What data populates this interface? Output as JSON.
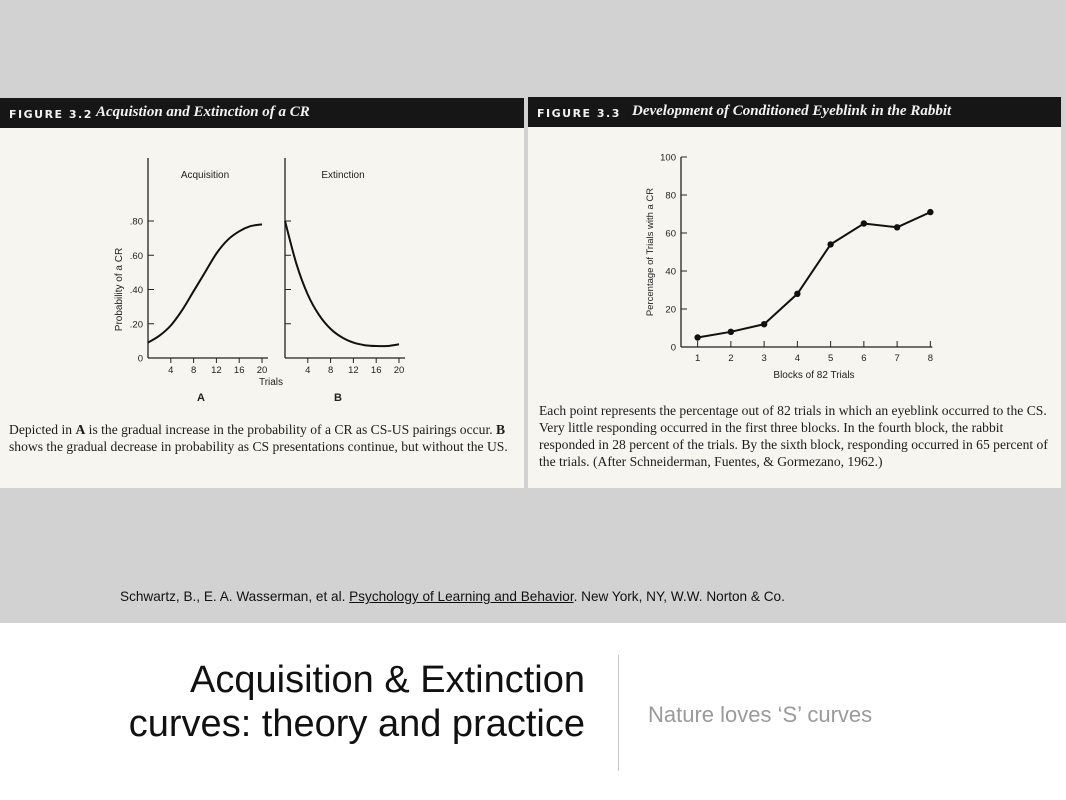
{
  "citation": {
    "before": "Schwartz, B., E. A. Wasserman, et al. ",
    "book": "Psychology of Learning and Behavior",
    "after": ". New York, NY, W.W. Norton & Co."
  },
  "slide": {
    "title_line1": "Acquisition & Extinction",
    "title_line2": "curves: theory and practice",
    "subtitle": "Nature loves ‘S’ curves"
  },
  "fig32": {
    "number": "FIGURE 3.2",
    "title": "Acquistion and Extinction of a CR",
    "caption": {
      "p1": "Depicted in ",
      "b1": "A",
      "p2": " is the gradual increase in the probability of a CR as CS-US pairings occur. ",
      "b2": "B",
      "p3": " shows the gradual decrease in probability as CS presentations continue, but without the US."
    }
  },
  "fig33": {
    "number": "FIGURE 3.3",
    "title": "Development of Conditioned Eyeblink in the Rabbit",
    "caption": "Each point represents the percentage out of 82 trials in which an eyeblink occurred to the CS. Very little responding occurred in the first three blocks. In the fourth block, the rabbit responded in 28 percent of the trials. By the sixth block, responding occurred in 65 percent of the trials. (After Schneiderman, Fuentes, & Gormezano, 1962.)"
  },
  "chart_data": [
    {
      "type": "line",
      "panel": "A",
      "title": "Acquisition",
      "xlabel": "Trials",
      "ylabel": "Probability of a CR",
      "x": [
        0,
        2,
        4,
        6,
        8,
        10,
        12,
        14,
        16,
        18,
        20
      ],
      "y": [
        0.09,
        0.13,
        0.19,
        0.28,
        0.39,
        0.5,
        0.61,
        0.69,
        0.74,
        0.77,
        0.78
      ],
      "xticks": [
        4,
        8,
        12,
        16,
        20
      ],
      "xticklabels": [
        "4",
        "8",
        "12",
        "16",
        "20"
      ],
      "yticks": [
        0,
        0.2,
        0.4,
        0.6,
        0.8
      ],
      "yticklabels": [
        "0",
        ".20",
        ".40",
        ".60",
        ".80"
      ],
      "xlim": [
        0,
        20
      ],
      "ylim": [
        0,
        0.8
      ],
      "grid": false
    },
    {
      "type": "line",
      "panel": "B",
      "title": "Extinction",
      "xlabel": "",
      "ylabel": "",
      "x": [
        0,
        2,
        4,
        6,
        8,
        10,
        12,
        14,
        16,
        18,
        20
      ],
      "y": [
        0.8,
        0.55,
        0.37,
        0.25,
        0.17,
        0.12,
        0.09,
        0.075,
        0.07,
        0.07,
        0.08
      ],
      "xticks": [
        4,
        8,
        12,
        16,
        20
      ],
      "xticklabels": [
        "4",
        "8",
        "12",
        "16",
        "20"
      ],
      "yticks": [
        0,
        0.2,
        0.4,
        0.6,
        0.8
      ],
      "yticklabels": [
        "",
        "",
        "",
        "",
        ""
      ],
      "xlim": [
        0,
        20
      ],
      "ylim": [
        0,
        0.8
      ],
      "grid": false
    },
    {
      "type": "line",
      "title": "",
      "xlabel": "Blocks of 82 Trials",
      "ylabel": "Percentage of Trials with a CR",
      "x": [
        1,
        2,
        3,
        4,
        5,
        6,
        7,
        8
      ],
      "y": [
        5,
        8,
        12,
        28,
        54,
        65,
        63,
        71
      ],
      "xlim": [
        0.5,
        8.2
      ],
      "ylim": [
        0,
        100
      ],
      "xticks": [
        1,
        2,
        3,
        4,
        5,
        6,
        7,
        8
      ],
      "yticks": [
        0,
        20,
        40,
        60,
        80,
        100
      ],
      "markers": true,
      "grid": false
    }
  ]
}
